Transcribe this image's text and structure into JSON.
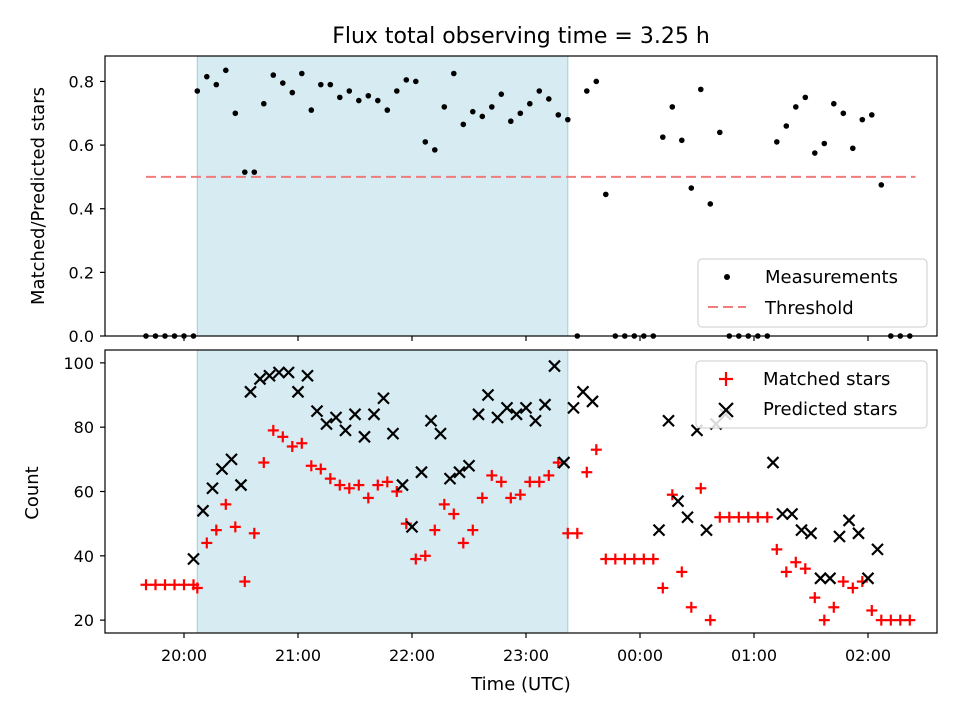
{
  "chart_data": [
    {
      "type": "scatter",
      "title": "Flux total observing time = 3.25 h",
      "xlabel": "",
      "ylabel": "Matched/Predicted stars",
      "ylim": [
        0,
        0.88
      ],
      "yticks": [
        "0.0",
        "0.2",
        "0.4",
        "0.6",
        "0.8"
      ],
      "xticks": [
        "20:00",
        "21:00",
        "22:00",
        "23:00",
        "00:00",
        "01:00",
        "02:00"
      ],
      "legend_position": "bottom-right",
      "shaded_interval": {
        "start": "20:07",
        "end": "23:22"
      },
      "threshold": {
        "name": "Threshold",
        "value": 0.5,
        "x_start": "19:40",
        "x_end": "02:25",
        "color": "#f07c7c"
      },
      "series": [
        {
          "name": "Measurements",
          "marker": "dot",
          "color": "#000000",
          "x": [
            "19:40",
            "19:45",
            "19:50",
            "19:55",
            "20:00",
            "20:05",
            "20:07",
            "20:12",
            "20:17",
            "20:22",
            "20:27",
            "20:32",
            "20:37",
            "20:42",
            "20:47",
            "20:52",
            "20:57",
            "21:02",
            "21:07",
            "21:12",
            "21:17",
            "21:22",
            "21:27",
            "21:32",
            "21:37",
            "21:42",
            "21:47",
            "21:52",
            "21:57",
            "22:02",
            "22:07",
            "22:12",
            "22:17",
            "22:22",
            "22:27",
            "22:32",
            "22:37",
            "22:42",
            "22:47",
            "22:52",
            "22:57",
            "23:02",
            "23:07",
            "23:12",
            "23:17",
            "23:22",
            "23:27",
            "23:32",
            "23:37",
            "23:42",
            "23:47",
            "23:52",
            "23:57",
            "00:02",
            "00:07",
            "00:12",
            "00:17",
            "00:22",
            "00:27",
            "00:32",
            "00:37",
            "00:42",
            "00:47",
            "00:52",
            "00:57",
            "01:02",
            "01:07",
            "01:12",
            "01:17",
            "01:22",
            "01:27",
            "01:32",
            "01:37",
            "01:42",
            "01:47",
            "01:52",
            "01:57",
            "02:02",
            "02:07",
            "02:12",
            "02:17",
            "02:22"
          ],
          "y": [
            0,
            0,
            0,
            0,
            0,
            0,
            0.77,
            0.815,
            0.79,
            0.835,
            0.7,
            0.515,
            0.515,
            0.73,
            0.82,
            0.795,
            0.765,
            0.825,
            0.71,
            0.79,
            0.79,
            0.75,
            0.77,
            0.74,
            0.755,
            0.74,
            0.71,
            0.77,
            0.805,
            0.8,
            0.61,
            0.585,
            0.72,
            0.825,
            0.665,
            0.705,
            0.69,
            0.72,
            0.76,
            0.675,
            0.7,
            0.73,
            0.77,
            0.745,
            0.695,
            0.68,
            0,
            0.77,
            0.8,
            0.445,
            0,
            0,
            0,
            0,
            0,
            0.625,
            0.72,
            0.615,
            0.465,
            0.775,
            0.415,
            0.64,
            0,
            0,
            0,
            0,
            0,
            0.61,
            0.66,
            0.72,
            0.75,
            0.575,
            0.605,
            0.73,
            0.7,
            0.59,
            0.68,
            0.695,
            0.475,
            0,
            0,
            0
          ]
        }
      ]
    },
    {
      "type": "scatter",
      "title": "",
      "xlabel": "Time (UTC)",
      "ylabel": "Count",
      "ylim": [
        16,
        104
      ],
      "yticks": [
        "20",
        "40",
        "60",
        "80",
        "100"
      ],
      "xticks": [
        "20:00",
        "21:00",
        "22:00",
        "23:00",
        "00:00",
        "01:00",
        "02:00"
      ],
      "legend_position": "top-right",
      "shaded_interval": {
        "start": "20:07",
        "end": "23:22"
      },
      "series": [
        {
          "name": "Matched stars",
          "marker": "plus",
          "color": "#ff0000",
          "x": [
            "19:40",
            "19:45",
            "19:50",
            "19:55",
            "20:00",
            "20:05",
            "20:07",
            "20:12",
            "20:17",
            "20:22",
            "20:27",
            "20:32",
            "20:37",
            "20:42",
            "20:47",
            "20:52",
            "20:57",
            "21:02",
            "21:07",
            "21:12",
            "21:17",
            "21:22",
            "21:27",
            "21:32",
            "21:37",
            "21:42",
            "21:47",
            "21:52",
            "21:57",
            "22:02",
            "22:07",
            "22:12",
            "22:17",
            "22:22",
            "22:27",
            "22:32",
            "22:37",
            "22:42",
            "22:47",
            "22:52",
            "22:57",
            "23:02",
            "23:07",
            "23:12",
            "23:17",
            "23:22",
            "23:27",
            "23:32",
            "23:37",
            "23:42",
            "23:47",
            "23:52",
            "23:57",
            "00:02",
            "00:07",
            "00:12",
            "00:17",
            "00:22",
            "00:27",
            "00:32",
            "00:37",
            "00:42",
            "00:47",
            "00:52",
            "00:57",
            "01:02",
            "01:07",
            "01:12",
            "01:17",
            "01:22",
            "01:27",
            "01:32",
            "01:37",
            "01:42",
            "01:47",
            "01:52",
            "01:57",
            "02:02",
            "02:07",
            "02:12",
            "02:17",
            "02:22"
          ],
          "y": [
            31,
            31,
            31,
            31,
            31,
            31,
            30,
            44,
            48,
            56,
            49,
            32,
            47,
            69,
            79,
            77,
            74,
            75,
            68,
            67,
            64,
            62,
            61,
            62,
            58,
            62,
            63,
            60,
            50,
            39,
            40,
            48,
            56,
            53,
            44,
            48,
            58,
            65,
            63,
            58,
            59,
            63,
            63,
            65,
            69,
            47,
            47,
            66,
            73,
            39,
            39,
            39,
            39,
            39,
            39,
            30,
            59,
            35,
            24,
            61,
            20,
            52,
            52,
            52,
            52,
            52,
            52,
            42,
            35,
            38,
            36,
            27,
            20,
            24,
            32,
            30,
            32,
            23,
            20,
            20,
            20,
            20
          ]
        },
        {
          "name": "Predicted stars",
          "marker": "x",
          "color": "#000000",
          "x": [
            "20:05",
            "20:10",
            "20:15",
            "20:20",
            "20:25",
            "20:30",
            "20:35",
            "20:40",
            "20:45",
            "20:50",
            "20:55",
            "21:00",
            "21:05",
            "21:10",
            "21:15",
            "21:20",
            "21:25",
            "21:30",
            "21:35",
            "21:40",
            "21:45",
            "21:50",
            "21:55",
            "22:00",
            "22:05",
            "22:10",
            "22:15",
            "22:20",
            "22:25",
            "22:30",
            "22:35",
            "22:40",
            "22:45",
            "22:50",
            "22:55",
            "23:00",
            "23:05",
            "23:10",
            "23:15",
            "23:20",
            "23:25",
            "23:30",
            "23:35",
            "23:40",
            "00:10",
            "00:15",
            "00:20",
            "00:25",
            "00:30",
            "00:35",
            "00:40",
            "00:45",
            "01:10",
            "01:15",
            "01:20",
            "01:25",
            "01:30",
            "01:35",
            "01:40",
            "01:45",
            "01:50",
            "01:55",
            "02:00",
            "02:05"
          ],
          "y": [
            39,
            54,
            61,
            67,
            70,
            62,
            91,
            95,
            96,
            97,
            97,
            91,
            96,
            85,
            81,
            83,
            79,
            84,
            77,
            84,
            89,
            78,
            62,
            49,
            66,
            82,
            78,
            64,
            66,
            68,
            84,
            90,
            83,
            86,
            84,
            86,
            82,
            87,
            99,
            69,
            86,
            91,
            88,
            null,
            48,
            82,
            57,
            52,
            79,
            48,
            81,
            84,
            69,
            53,
            53,
            48,
            47,
            33,
            33,
            46,
            51,
            47,
            33,
            42
          ]
        }
      ]
    }
  ]
}
